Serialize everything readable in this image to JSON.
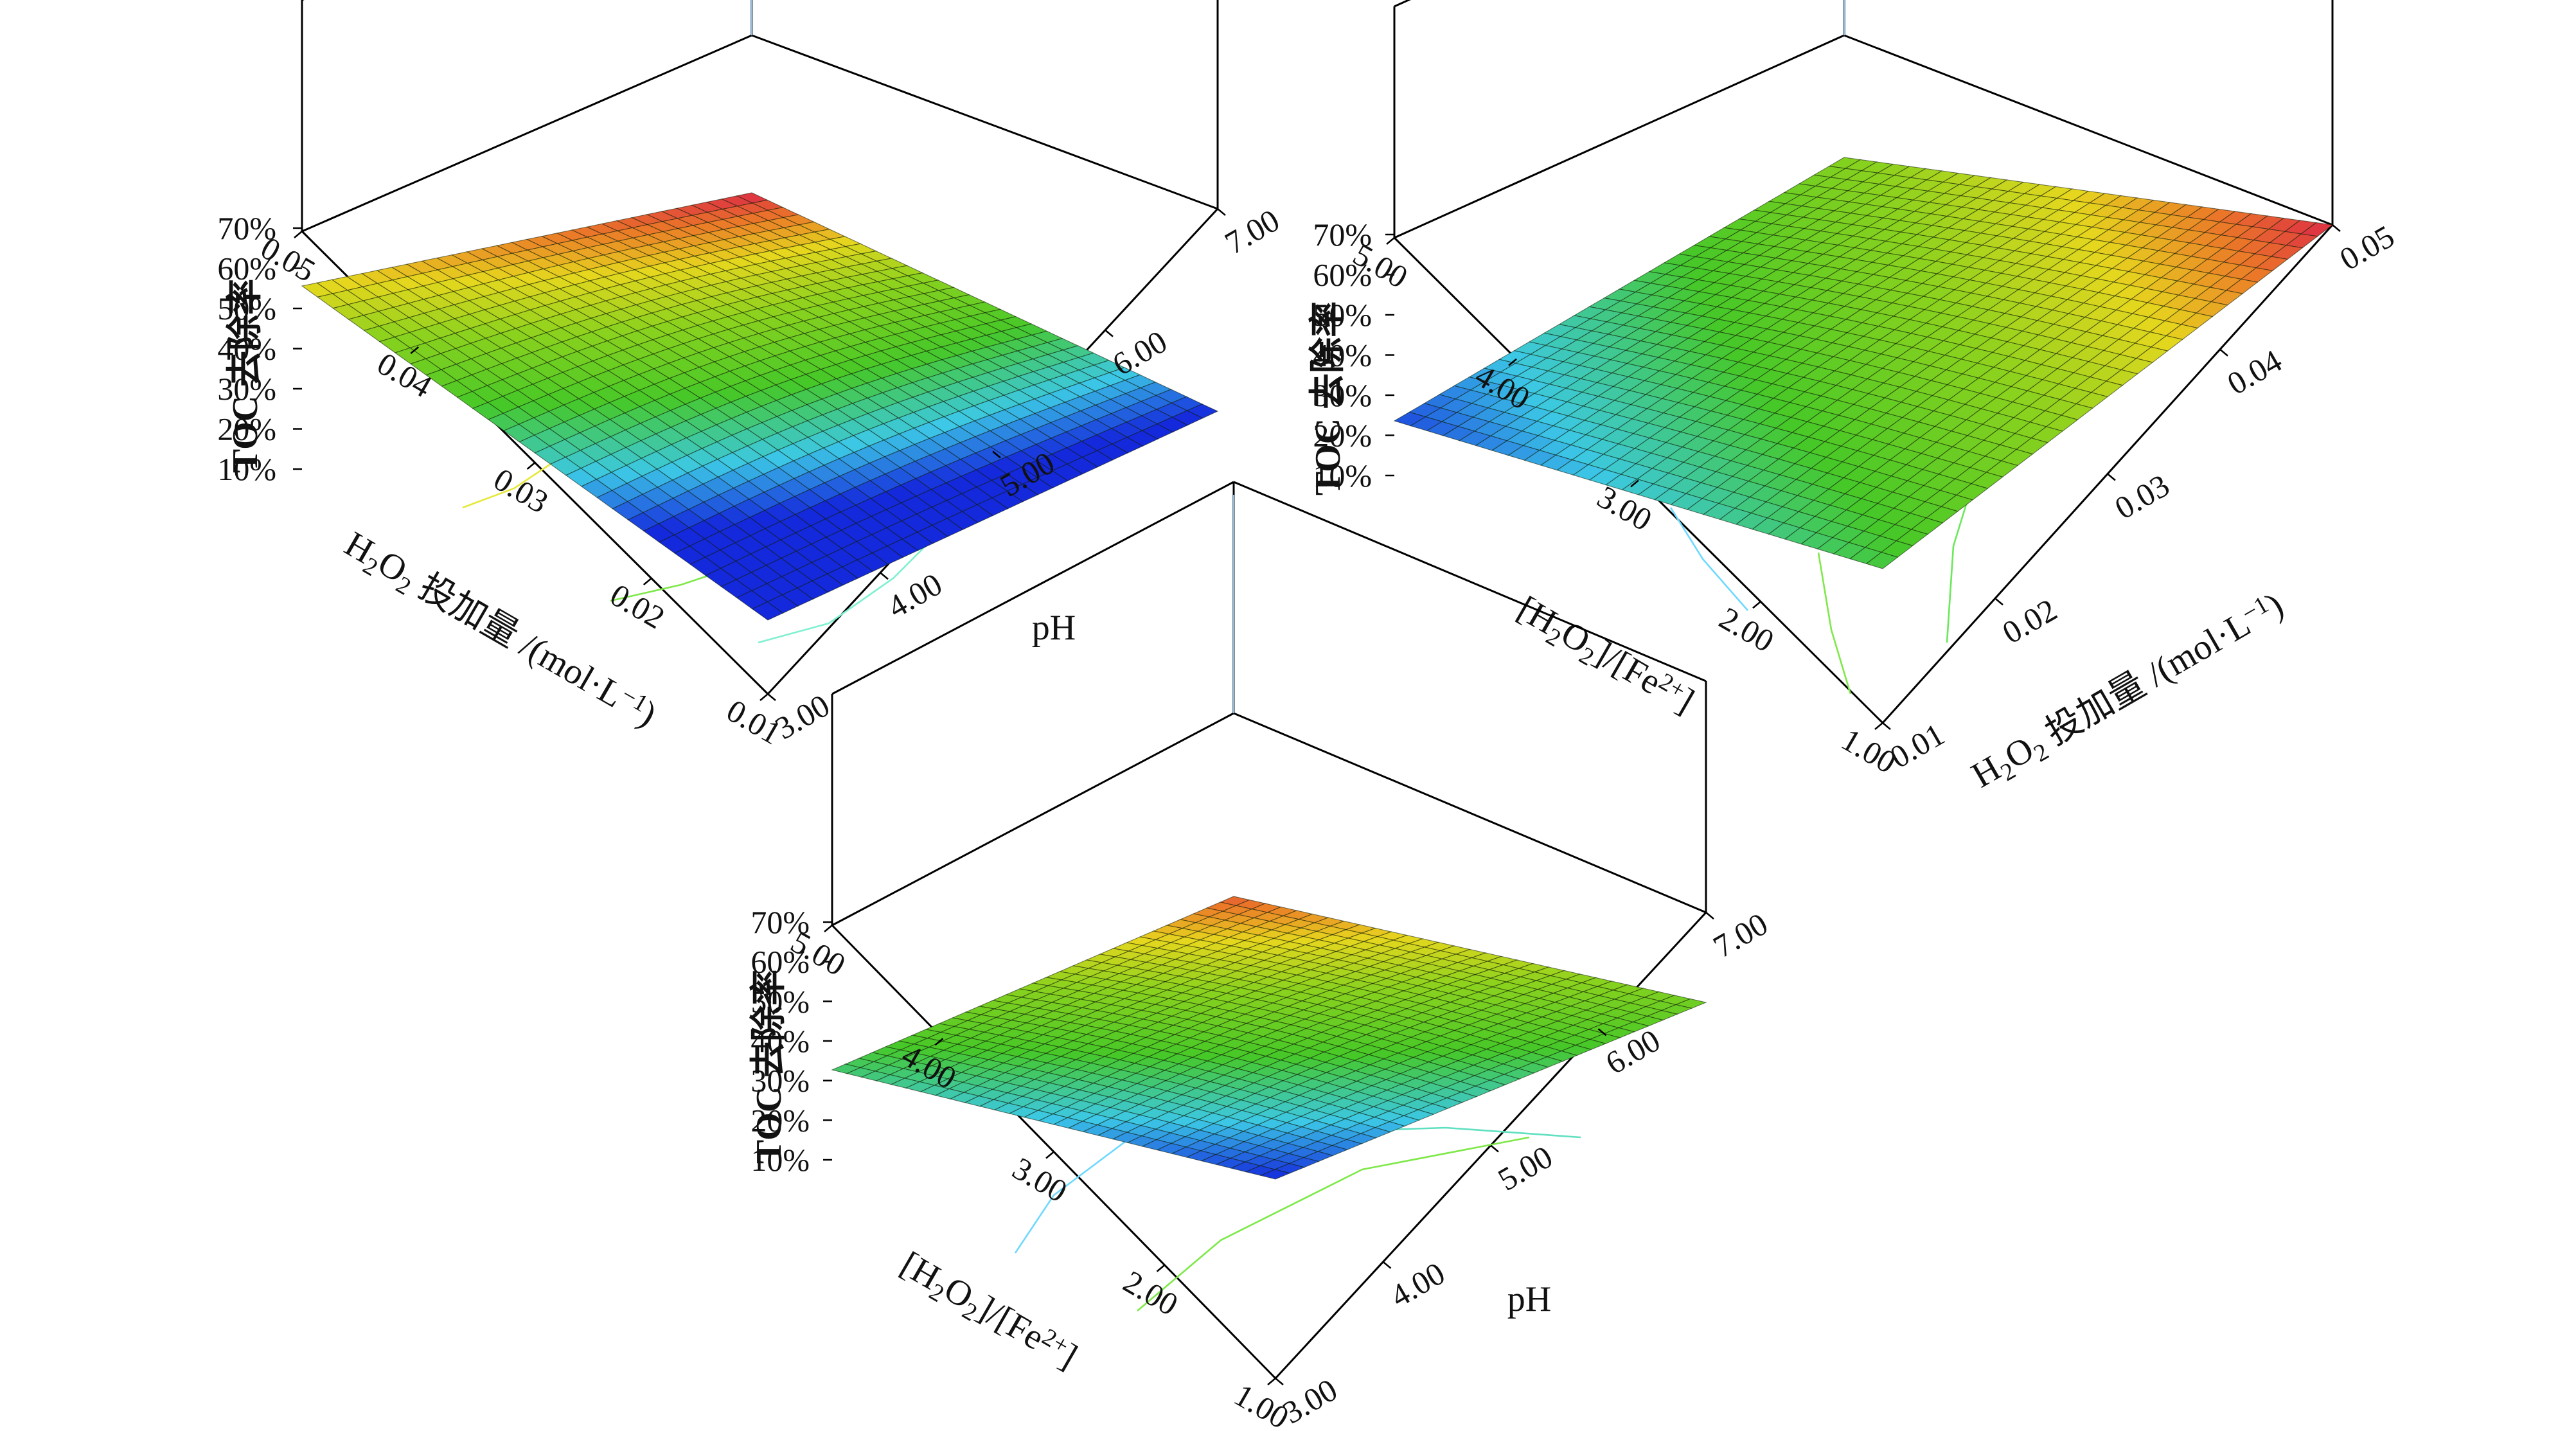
{
  "chart_data": [
    {
      "type": "surface3d",
      "zlabel": "TOC 去除率",
      "xlabel_parts": [
        "H",
        "2",
        "O",
        "2",
        " 投加量 /(mol·L",
        "−1",
        ")"
      ],
      "ylabel": "pH",
      "x_ticks": [
        "0.05",
        "0.04",
        "0.03",
        "0.02",
        "0.01"
      ],
      "y_ticks": [
        "3.00",
        "4.00",
        "5.00",
        "6.00",
        "7.00"
      ],
      "z_ticks": [
        "10%",
        "20%",
        "30%",
        "40%",
        "50%",
        "60%",
        "70%"
      ],
      "corner_values": {
        "far_left": 50,
        "back": 58,
        "right": 22,
        "front": 12
      },
      "zlim": [
        10,
        70
      ]
    },
    {
      "type": "surface3d",
      "zlabel": "TOC 去除率",
      "xlabel_parts": [
        "[H",
        "2",
        "O",
        "2",
        "]/[Fe",
        "2+",
        "]"
      ],
      "ylabel_parts": [
        "H",
        "2",
        "O",
        "2",
        " 投加量 /(mol·L",
        "−1",
        ")"
      ],
      "x_ticks": [
        "5.00",
        "4.00",
        "3.00",
        "2.00",
        "1.00"
      ],
      "y_ticks": [
        "0.01",
        "0.02",
        "0.03",
        "0.04",
        "0.05"
      ],
      "z_ticks": [
        "10%",
        "20%",
        "30%",
        "40%",
        "50%",
        "60%",
        "70%"
      ],
      "corner_values": {
        "far_left": 20,
        "back": 50,
        "right": 72,
        "front": 38
      },
      "zlim": [
        10,
        70
      ]
    },
    {
      "type": "surface3d",
      "zlabel": "TOC 去除率",
      "xlabel_parts": [
        "[H",
        "2",
        "O",
        "2",
        "]/[Fe",
        "2+",
        "]"
      ],
      "ylabel": "pH",
      "x_ticks": [
        "5.00",
        "4.00",
        "3.00",
        "2.00",
        "1.00"
      ],
      "y_ticks": [
        "3.00",
        "4.00",
        "5.00",
        "6.00",
        "7.00"
      ],
      "z_ticks": [
        "10%",
        "20%",
        "30%",
        "40%",
        "50%",
        "60%",
        "70%"
      ],
      "corner_values": {
        "far_left": 30,
        "back": 59,
        "right": 40,
        "front": 15
      },
      "zlim": [
        10,
        70
      ]
    }
  ]
}
